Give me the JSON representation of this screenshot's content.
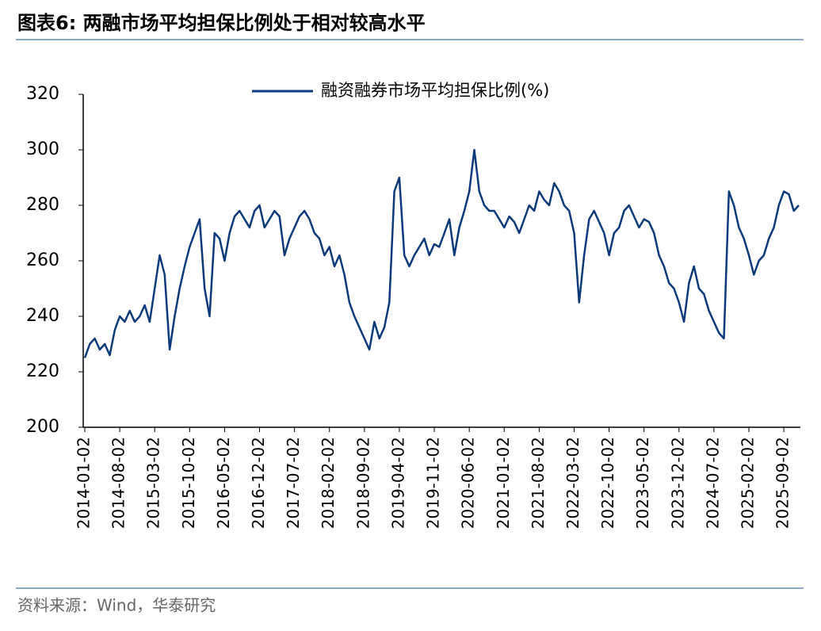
{
  "header": {
    "title": "图表6:  两融市场平均担保比例处于相对较高水平"
  },
  "chart_data": {
    "type": "line",
    "categories": [
      "2014-01-02",
      null,
      null,
      null,
      null,
      null,
      null,
      "2014-08-02",
      null,
      null,
      null,
      null,
      null,
      null,
      "2015-03-02",
      null,
      null,
      null,
      null,
      null,
      null,
      "2015-10-02",
      null,
      null,
      null,
      null,
      null,
      null,
      "2016-05-02",
      null,
      null,
      null,
      null,
      null,
      null,
      "2016-12-02",
      null,
      null,
      null,
      null,
      null,
      null,
      "2017-07-02",
      null,
      null,
      null,
      null,
      null,
      null,
      "2018-02-02",
      null,
      null,
      null,
      null,
      null,
      null,
      "2018-09-02",
      null,
      null,
      null,
      null,
      null,
      null,
      "2019-04-02",
      null,
      null,
      null,
      null,
      null,
      null,
      "2019-11-02",
      null,
      null,
      null,
      null,
      null,
      null,
      "2020-06-02",
      null,
      null,
      null,
      null,
      null,
      null,
      "2021-01-02",
      null,
      null,
      null,
      null,
      null,
      null,
      "2021-08-02",
      null,
      null,
      null,
      null,
      null,
      null,
      "2022-03-02",
      null,
      null,
      null,
      null,
      null,
      null,
      "2022-10-02",
      null,
      null,
      null,
      null,
      null,
      null,
      "2023-05-02",
      null,
      null,
      null,
      null,
      null,
      null,
      "2023-12-02",
      null,
      null,
      null,
      null,
      null,
      null,
      "2024-07-02",
      null,
      null,
      null,
      null,
      null,
      null,
      "2025-02-02",
      null,
      null,
      null,
      null,
      null,
      null,
      "2025-09-02",
      null,
      null,
      null
    ],
    "series": [
      {
        "name": "融资融券市场平均担保比例(%)",
        "color": "#0b3a7a",
        "values": [
          225,
          230,
          232,
          228,
          230,
          226,
          235,
          240,
          238,
          242,
          238,
          240,
          244,
          238,
          250,
          262,
          255,
          228,
          240,
          250,
          258,
          265,
          270,
          275,
          250,
          240,
          270,
          268,
          260,
          270,
          276,
          278,
          275,
          272,
          278,
          280,
          272,
          275,
          278,
          276,
          262,
          268,
          272,
          276,
          278,
          275,
          270,
          268,
          262,
          265,
          258,
          262,
          255,
          245,
          240,
          236,
          232,
          228,
          238,
          232,
          236,
          245,
          285,
          290,
          262,
          258,
          262,
          265,
          268,
          262,
          266,
          265,
          270,
          275,
          262,
          272,
          278,
          285,
          300,
          285,
          280,
          278,
          278,
          275,
          272,
          276,
          274,
          270,
          275,
          280,
          278,
          285,
          282,
          280,
          288,
          285,
          280,
          278,
          270,
          245,
          262,
          275,
          278,
          274,
          270,
          262,
          270,
          272,
          278,
          280,
          276,
          272,
          275,
          274,
          270,
          262,
          258,
          252,
          250,
          245,
          238,
          252,
          258,
          250,
          248,
          242,
          238,
          234,
          232,
          285,
          280,
          272,
          268,
          262,
          255,
          260,
          262,
          268,
          272,
          280,
          285,
          284,
          278,
          280
        ]
      }
    ],
    "ylim": [
      200,
      320
    ],
    "yticks": [
      200,
      220,
      240,
      260,
      280,
      300,
      320
    ],
    "legend": "top"
  },
  "footer": {
    "source": "资料来源：Wind，华泰研究"
  }
}
